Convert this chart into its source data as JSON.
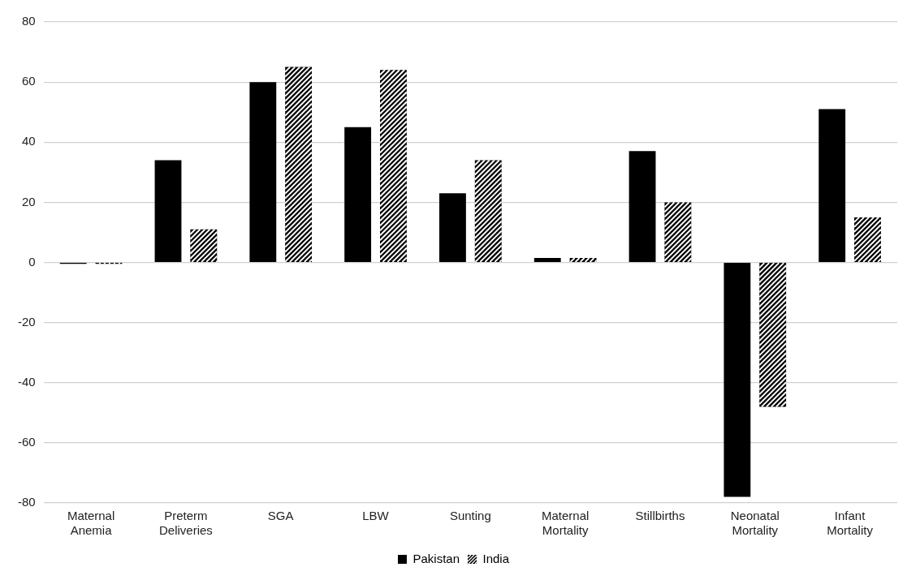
{
  "chart_data": {
    "type": "bar",
    "categories": [
      "Maternal Anemia",
      "Preterm Deliveries",
      "SGA",
      "LBW",
      "Sunting",
      "Maternal Mortality",
      "Stillbirths",
      "Neonatal Mortality",
      "Infant Mortality"
    ],
    "series": [
      {
        "name": "Pakistan",
        "color": "#000000",
        "values": [
          -0.5,
          34,
          60,
          45,
          23,
          1.5,
          37,
          -78,
          51
        ]
      },
      {
        "name": "India",
        "color": "#000000",
        "values": [
          -0.5,
          11,
          65,
          64,
          34,
          1.5,
          20,
          -48,
          15
        ]
      }
    ],
    "ylim": [
      -80,
      80
    ],
    "yticks": [
      -80,
      -60,
      -40,
      -20,
      0,
      20,
      40,
      60,
      80
    ],
    "grid": "y",
    "legend": "bottom"
  }
}
